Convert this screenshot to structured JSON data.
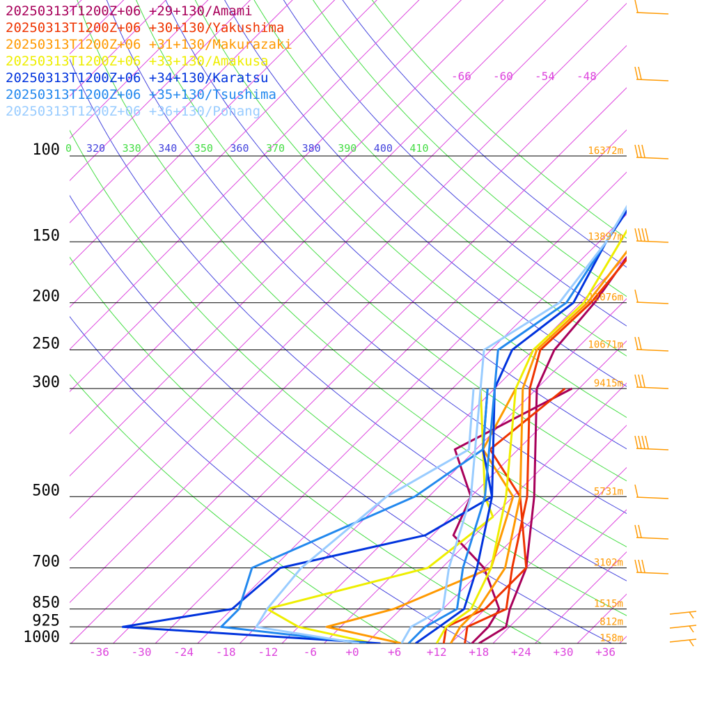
{
  "chart_data": {
    "type": "line",
    "title": "",
    "xlabel": "",
    "ylabel": "",
    "x_ticks": [
      "-36",
      "-30",
      "-24",
      "-18",
      "-12",
      "-6",
      "+0",
      "+6",
      "+12",
      "+18",
      "+24",
      "+30",
      "+36"
    ],
    "x_tick_values": [
      -36,
      -30,
      -24,
      -18,
      -12,
      -6,
      0,
      6,
      12,
      18,
      24,
      30,
      36
    ],
    "y_ticks": [
      100,
      150,
      200,
      250,
      300,
      500,
      700,
      850,
      925,
      1000
    ],
    "height_labels": [
      {
        "p": 100,
        "text": "16372m"
      },
      {
        "p": 150,
        "text": "13897m"
      },
      {
        "p": 200,
        "text": "12076m"
      },
      {
        "p": 250,
        "text": "10671m"
      },
      {
        "p": 300,
        "text": "9415m"
      },
      {
        "p": 500,
        "text": "5731m"
      },
      {
        "p": 700,
        "text": "3102m"
      },
      {
        "p": 850,
        "text": "1515m"
      },
      {
        "p": 925,
        "text": "812m"
      },
      {
        "p": 1000,
        "text": "158m"
      }
    ],
    "isotherm_top_labels": [
      "-66",
      "-60",
      "-54",
      "-48"
    ],
    "theta_labels": [
      {
        "text": "0",
        "color": "#44dd44"
      },
      {
        "text": "320",
        "color": "#4444dd"
      },
      {
        "text": "330",
        "color": "#44dd44"
      },
      {
        "text": "340",
        "color": "#4444dd"
      },
      {
        "text": "350",
        "color": "#44dd44"
      },
      {
        "text": "360",
        "color": "#4444dd"
      },
      {
        "text": "370",
        "color": "#44dd44"
      },
      {
        "text": "380",
        "color": "#4444dd"
      },
      {
        "text": "390",
        "color": "#44dd44"
      },
      {
        "text": "400",
        "color": "#4444dd"
      },
      {
        "text": "410",
        "color": "#44dd44"
      }
    ],
    "series": [
      {
        "name": "20250313T1200Z+06 +29+130/Amami",
        "color": "#a8005a",
        "temp": [
          [
            1000,
            18
          ],
          [
            925,
            19.5
          ],
          [
            850,
            17.5
          ],
          [
            700,
            14
          ],
          [
            500,
            5
          ],
          [
            300,
            -10
          ],
          [
            250,
            -13
          ],
          [
            200,
            -14
          ],
          [
            150,
            -16.5
          ],
          [
            100,
            -21
          ],
          [
            70,
            -28
          ],
          [
            50,
            -37
          ],
          [
            10,
            -43
          ]
        ],
        "dew": [
          [
            1000,
            17
          ],
          [
            925,
            17
          ],
          [
            850,
            16
          ],
          [
            700,
            8
          ],
          [
            600,
            -1
          ],
          [
            500,
            -4
          ],
          [
            400,
            -13
          ],
          [
            300,
            -5
          ]
        ]
      },
      {
        "name": "20250313T1200Z+06 +30+130/Yakushima",
        "color": "#ee3300",
        "temp": [
          [
            1000,
            16
          ],
          [
            925,
            14
          ],
          [
            850,
            17
          ],
          [
            700,
            12
          ],
          [
            500,
            4
          ],
          [
            300,
            -11
          ],
          [
            250,
            -15
          ],
          [
            200,
            -14.5
          ],
          [
            150,
            -16
          ],
          [
            100,
            -21
          ],
          [
            70,
            -30
          ],
          [
            50,
            -37
          ],
          [
            10,
            -43
          ]
        ],
        "dew": [
          [
            1000,
            13
          ],
          [
            925,
            11
          ],
          [
            850,
            14
          ],
          [
            700,
            14
          ],
          [
            500,
            3
          ],
          [
            400,
            -8
          ],
          [
            300,
            -6
          ]
        ]
      },
      {
        "name": "20250313T1200Z+06 +31+130/Makurazaki",
        "color": "#ff9900",
        "temp": [
          [
            1000,
            14
          ],
          [
            925,
            13
          ],
          [
            850,
            13
          ],
          [
            700,
            11
          ],
          [
            500,
            3
          ],
          [
            300,
            -12
          ],
          [
            250,
            -15.5
          ],
          [
            200,
            -15
          ],
          [
            150,
            -17
          ],
          [
            100,
            -22
          ],
          [
            70,
            -31
          ],
          [
            50,
            -39
          ],
          [
            10,
            -45
          ]
        ],
        "dew": [
          [
            1000,
            7
          ],
          [
            925,
            -6
          ],
          [
            850,
            1
          ],
          [
            700,
            9
          ],
          [
            500,
            2
          ],
          [
            400,
            -9
          ],
          [
            300,
            -13
          ]
        ]
      },
      {
        "name": "20250313T1200Z+06 +33+130/Amakusa",
        "color": "#eeee00",
        "temp": [
          [
            1000,
            12
          ],
          [
            925,
            11
          ],
          [
            850,
            12
          ],
          [
            700,
            9
          ],
          [
            500,
            1
          ],
          [
            300,
            -13
          ],
          [
            250,
            -16
          ],
          [
            200,
            -15.5
          ],
          [
            150,
            -19
          ],
          [
            100,
            -24
          ],
          [
            70,
            -32
          ],
          [
            50,
            -40
          ],
          [
            10,
            -45
          ]
        ],
        "dew": [
          [
            1000,
            3
          ],
          [
            925,
            -10
          ],
          [
            850,
            -17
          ],
          [
            700,
            0
          ],
          [
            550,
            2
          ],
          [
            500,
            -2
          ],
          [
            300,
            -18
          ]
        ]
      },
      {
        "name": "20250313T1200Z+06 +34+130/Karatsu",
        "color": "#0033dd",
        "temp": [
          [
            1000,
            9
          ],
          [
            925,
            10
          ],
          [
            850,
            11
          ],
          [
            700,
            7
          ],
          [
            500,
            -1
          ],
          [
            300,
            -16
          ],
          [
            250,
            -19
          ],
          [
            200,
            -17
          ],
          [
            150,
            -21
          ],
          [
            100,
            -25
          ],
          [
            70,
            -34
          ],
          [
            50,
            -41
          ],
          [
            10,
            -47
          ]
        ],
        "dew": [
          [
            1000,
            4
          ],
          [
            925,
            -35
          ],
          [
            850,
            -22
          ],
          [
            700,
            -21
          ],
          [
            600,
            -5
          ],
          [
            500,
            -1
          ],
          [
            400,
            -9
          ],
          [
            300,
            -17
          ]
        ]
      },
      {
        "name": "20250313T1200Z+06 +35+130/Tsushima",
        "color": "#2288ee",
        "temp": [
          [
            1000,
            8
          ],
          [
            925,
            8
          ],
          [
            850,
            10
          ],
          [
            700,
            5
          ],
          [
            500,
            -2
          ],
          [
            300,
            -16
          ],
          [
            250,
            -21
          ],
          [
            200,
            -18
          ],
          [
            150,
            -21
          ],
          [
            100,
            -26
          ],
          [
            70,
            -35
          ],
          [
            50,
            -42
          ],
          [
            10,
            -48
          ]
        ],
        "dew": [
          [
            1000,
            2
          ],
          [
            925,
            -21
          ],
          [
            850,
            -21
          ],
          [
            700,
            -25
          ],
          [
            500,
            -12
          ],
          [
            400,
            -9
          ],
          [
            300,
            -17
          ]
        ]
      },
      {
        "name": "20250313T1200Z+06 +36+130/Pohang",
        "color": "#99ccff",
        "temp": [
          [
            1000,
            7
          ],
          [
            925,
            6
          ],
          [
            850,
            8
          ],
          [
            700,
            3
          ],
          [
            500,
            -4
          ],
          [
            300,
            -18
          ],
          [
            250,
            -23
          ],
          [
            200,
            -19
          ],
          [
            150,
            -21
          ],
          [
            100,
            -26
          ],
          [
            70,
            -36
          ],
          [
            50,
            -43
          ],
          [
            10,
            -49
          ]
        ],
        "dew": [
          [
            1000,
            1
          ],
          [
            925,
            -16
          ],
          [
            850,
            -17
          ],
          [
            700,
            -18
          ],
          [
            500,
            -16
          ],
          [
            400,
            -11
          ],
          [
            300,
            -19
          ]
        ]
      }
    ],
    "wind_barb_color": "#ff9900",
    "grid": true,
    "legend_position": "top-left"
  }
}
